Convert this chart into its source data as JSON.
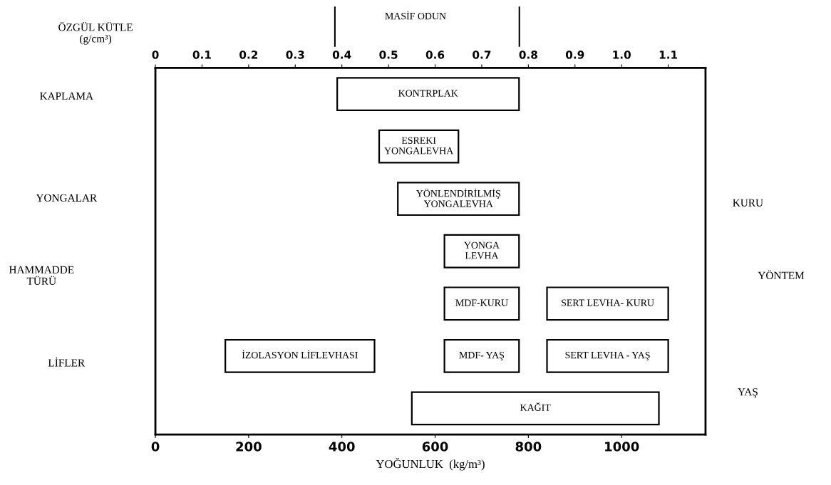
{
  "chart_data": {
    "type": "bar",
    "orientation": "horizontal",
    "categories": [
      null,
      null,
      null,
      null,
      null,
      null,
      null
    ],
    "series": [
      {
        "color": "#ffffff",
        "base": [
          390,
          480,
          520,
          620,
          620,
          620,
          550
        ],
        "values": [
          390,
          170,
          260,
          160,
          160,
          160,
          530
        ],
        "value_labels": [
          "KONTRPLAK",
          "ESREKI\nYONGALEVHA",
          "YÖNLENDİRİLMİŞ\nYONGALEVHA",
          "YONGA\nLEVHA",
          "MDF-KURU",
          "MDF- YAŞ",
          "KAĞIT"
        ]
      },
      {
        "color": "#ffffff",
        "base": [
          null,
          null,
          null,
          null,
          840,
          840,
          null
        ],
        "values": [
          null,
          null,
          null,
          null,
          260,
          260,
          null
        ],
        "value_labels": [
          null,
          null,
          null,
          null,
          "SERT LEVHA- KURU",
          "SERT LEVHA - YAŞ",
          null
        ]
      },
      {
        "color": "#ffffff",
        "base": [
          null,
          null,
          null,
          null,
          null,
          150,
          null
        ],
        "values": [
          null,
          null,
          null,
          null,
          null,
          320,
          null
        ],
        "value_labels": [
          null,
          null,
          null,
          null,
          null,
          "İZOLASYON LİFLEVHASI",
          null
        ]
      }
    ],
    "xlabel": "YOĞUNLUK  (kg/m³)",
    "x2label": "ÖZGÜL KÜTLE\n(g/cm³)",
    "xlim": [
      0,
      1180
    ],
    "xticks": [
      0,
      200,
      400,
      600,
      800,
      1000
    ],
    "x2lim": [
      0,
      1.18
    ],
    "x2ticks": [
      0,
      0.1,
      0.2,
      0.3,
      0.4,
      0.5,
      0.6,
      0.7,
      0.8,
      0.9,
      {
        "value": 1.0,
        "label": "1.0"
      },
      1.1
    ],
    "annotations": [
      "MASİF ODUN",
      "KAPLAMA",
      "YONGALAR",
      "HAMMADDE\nTÜRÜ",
      "LİFLER",
      "KURU",
      "YÖNTEM",
      "YAŞ"
    ],
    "grid": false,
    "legend": false
  }
}
